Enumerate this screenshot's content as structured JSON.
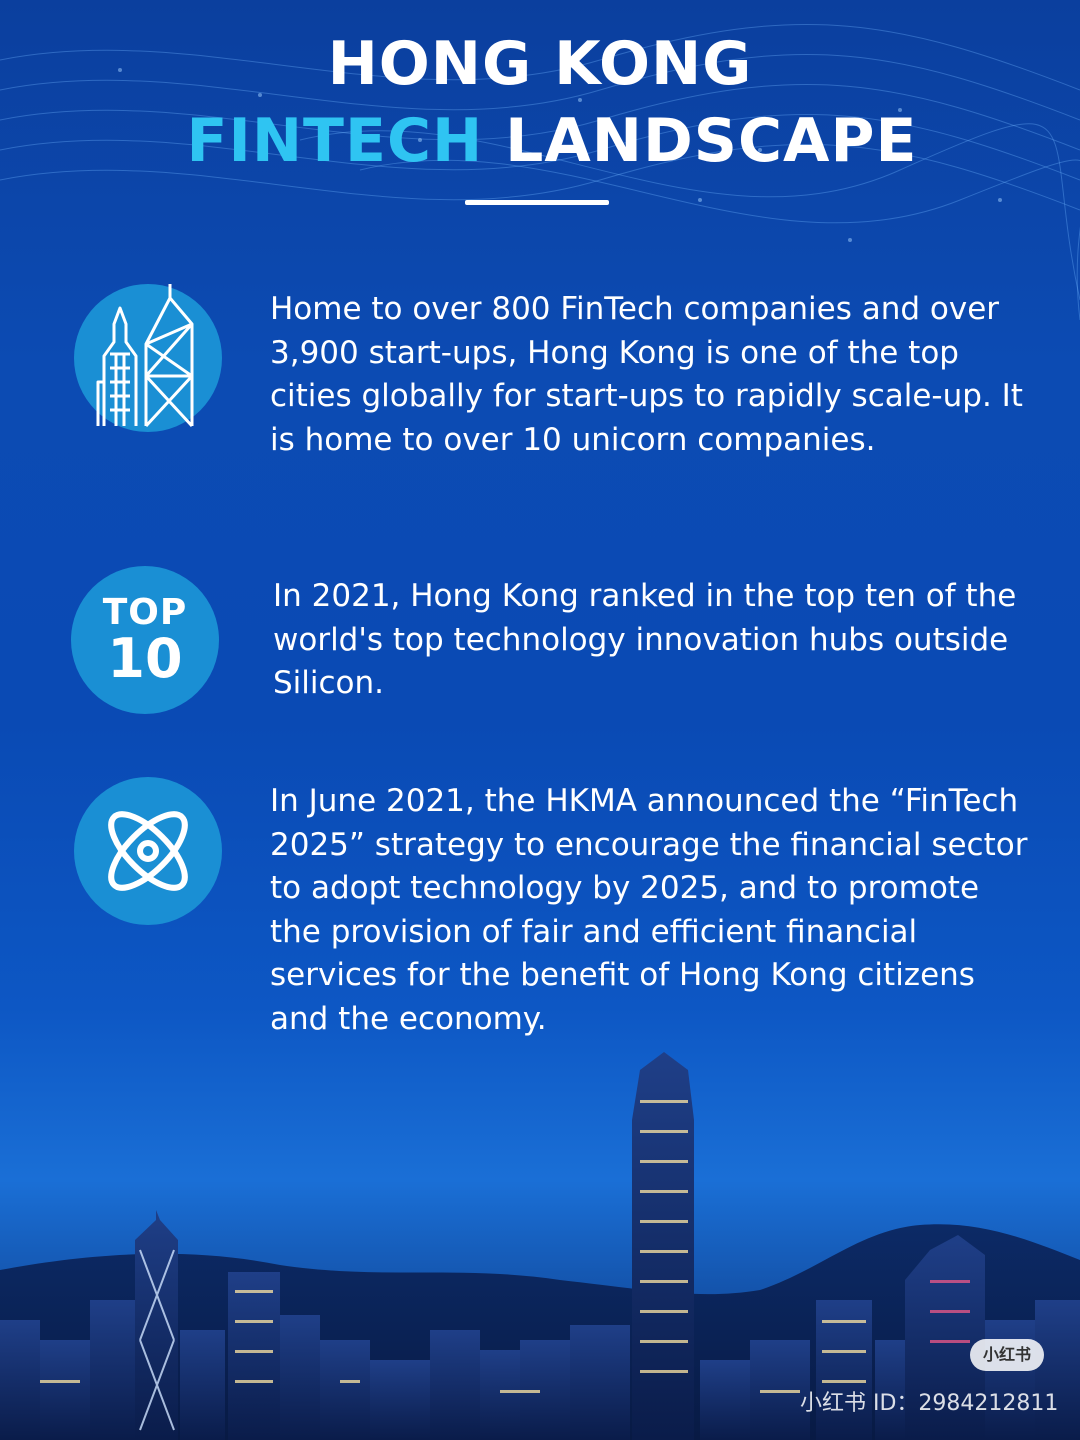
{
  "title": {
    "line1": "HONG KONG",
    "line2_accent": "FINTECH",
    "line2_rest": "LANDSCAPE"
  },
  "items": [
    {
      "icon": "skyscraper-icon",
      "text": "Home to over 800 FinTech companies and over 3,900 start-ups, Hong Kong is one of the top cities globally for start-ups to rapidly scale-up. It is home to over 10 unicorn companies."
    },
    {
      "badge_top": "TOP",
      "badge_num": "10",
      "text": "In 2021, Hong Kong ranked in the top ten of the world's top technology innovation hubs outside Silicon."
    },
    {
      "icon": "atom-icon",
      "text": "In June 2021, the HKMA announced the “FinTech 2025” strategy  to encourage the financial sector to adopt technology by 2025, and to promote the provision of fair and efficient financial services for the benefit of Hong Kong citizens and the economy."
    }
  ],
  "watermark": {
    "badge": "小红书",
    "id_text": "小红书 ID：2984212811"
  },
  "colors": {
    "accent": "#2fc4f2",
    "circle": "#1a8fd4",
    "background": "#0c4bb3"
  }
}
